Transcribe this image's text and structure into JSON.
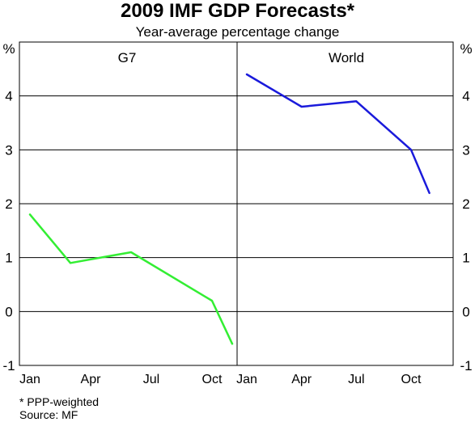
{
  "title": "2009 IMF GDP Forecasts*",
  "subtitle": "Year-average percentage change",
  "footnote": "*   PPP-weighted",
  "source": "Source: MF",
  "chart_data": {
    "type": "line",
    "unit_left": "%",
    "unit_right": "%",
    "ylim": [
      -1,
      5
    ],
    "yticks": [
      -1,
      0,
      1,
      2,
      3,
      4
    ],
    "grid": true,
    "x_tick_labels": [
      "Jan",
      "Apr",
      "Jul",
      "Oct"
    ],
    "panels": [
      {
        "title": "G7",
        "series": [
          {
            "color": "#33ee33",
            "points": [
              {
                "x": "Jan",
                "y": 1.8
              },
              {
                "x": "Mar",
                "y": 0.9
              },
              {
                "x": "Jun",
                "y": 1.1
              },
              {
                "x": "Oct",
                "y": 0.2
              },
              {
                "x": "Nov",
                "y": -0.6
              }
            ]
          }
        ]
      },
      {
        "title": "World",
        "series": [
          {
            "color": "#1a1adb",
            "points": [
              {
                "x": "Jan",
                "y": 4.4
              },
              {
                "x": "Apr",
                "y": 3.8
              },
              {
                "x": "Jul",
                "y": 3.9
              },
              {
                "x": "Oct",
                "y": 3.0
              },
              {
                "x": "Nov",
                "y": 2.2
              }
            ]
          }
        ]
      }
    ]
  }
}
